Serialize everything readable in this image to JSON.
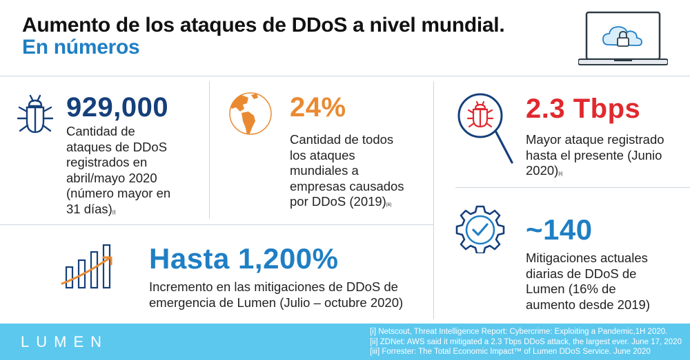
{
  "header": {
    "title": "Aumento de los ataques de DDoS a nivel mundial.",
    "subtitle": "En números"
  },
  "stats": [
    {
      "value": "929,000",
      "lines": [
        "Cantidad de",
        "ataques de DDoS",
        "registrados en",
        "abril/mayo 2020",
        "(número mayor en",
        "31 días)"
      ],
      "ref": "[i]",
      "icon": "bug-icon"
    },
    {
      "value": "24%",
      "lines": [
        "Cantidad de todos",
        "los ataques",
        "mundiales a",
        "empresas causados",
        "por DDoS (2019)"
      ],
      "ref": "[iii]",
      "icon": "globe-americas-icon"
    },
    {
      "value": "2.3 Tbps",
      "lines": [
        "Mayor ataque registrado",
        "hasta el presente (Junio",
        "2020)"
      ],
      "ref": "[ii]",
      "icon": "bug-magnifier-icon"
    },
    {
      "value": "Hasta 1,200%",
      "lines": [
        "Incremento en las mitigaciones de DDoS de",
        "emergencia de Lumen (Julio – octubre 2020)"
      ],
      "ref": "",
      "icon": "growth-chart-icon"
    },
    {
      "value": "~140",
      "lines": [
        "Mitigaciones actuales",
        "diarias de DDoS de",
        "Lumen (16% de",
        "aumento desde 2019)"
      ],
      "ref": "",
      "icon": "gear-check-icon"
    }
  ],
  "footer": {
    "logo": "LUMEN",
    "references": [
      "[i] Netscout, Threat Intelligence Report: Cybercrime: Exploiting a Pandemic,1H 2020.",
      "[ii] ZDNet: AWS said it mitigated a 2.3 Tbps DDoS attack, the largest ever. June 17, 2020",
      "[iii] Forrester: The Total Economic Impact™ of Lumen DDoS Service. June 2020"
    ]
  },
  "colors": {
    "navy": "#153f7a",
    "orange": "#e98a32",
    "red": "#e0292f",
    "blue": "#1f7fc4",
    "footer": "#5cc8ee"
  }
}
